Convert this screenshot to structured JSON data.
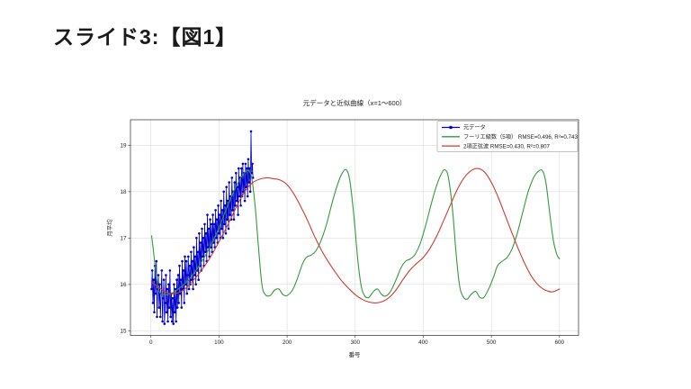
{
  "slide": {
    "title": "スライド3:【図1】"
  },
  "chart_data": {
    "type": "line",
    "title": "元データと近似曲線（x=1～600）",
    "xlabel": "番号",
    "ylabel": "月平均",
    "xlim": [
      -30,
      628
    ],
    "ylim": [
      14.9,
      19.55
    ],
    "xticks": [
      0,
      100,
      200,
      300,
      400,
      500,
      600
    ],
    "yticks": [
      15,
      16,
      17,
      18,
      19
    ],
    "grid": true,
    "legend_position": "upper right",
    "series": [
      {
        "name": "original-data",
        "label": "元データ",
        "color": "#0000cc",
        "style": "line+markers",
        "x_start": 1,
        "values": [
          15.9,
          16.3,
          15.6,
          16.1,
          15.4,
          16.4,
          15.8,
          16.5,
          15.3,
          15.9,
          16.2,
          15.5,
          16.0,
          15.3,
          15.8,
          16.3,
          15.2,
          15.7,
          16.1,
          15.15,
          15.6,
          16.2,
          15.4,
          15.9,
          15.2,
          16.0,
          15.5,
          16.3,
          15.3,
          15.8,
          15.2,
          15.7,
          15.15,
          16.0,
          15.4,
          15.9,
          15.2,
          16.1,
          15.5,
          16.2,
          15.6,
          16.4,
          15.8,
          16.1,
          15.5,
          16.5,
          15.9,
          16.3,
          15.6,
          16.6,
          16.0,
          16.5,
          15.8,
          16.2,
          16.6,
          15.9,
          16.4,
          16.0,
          16.7,
          16.1,
          16.5,
          15.9,
          16.8,
          16.2,
          16.6,
          16.0,
          17.0,
          16.3,
          16.7,
          16.1,
          17.1,
          16.4,
          16.9,
          16.3,
          17.2,
          16.6,
          17.0,
          16.4,
          17.3,
          16.7,
          17.1,
          16.5,
          17.5,
          16.8,
          17.2,
          16.6,
          17.4,
          16.8,
          17.3,
          16.7,
          17.5,
          16.9,
          17.3,
          16.8,
          17.6,
          17.0,
          17.4,
          16.9,
          17.7,
          17.1,
          17.5,
          17.0,
          17.8,
          17.2,
          17.6,
          17.0,
          18.0,
          17.3,
          17.7,
          17.1,
          18.1,
          17.4,
          17.8,
          17.2,
          18.2,
          17.5,
          17.9,
          17.4,
          18.3,
          17.6,
          18.0,
          17.4,
          18.2,
          17.7,
          18.4,
          17.8,
          18.1,
          17.5,
          18.5,
          17.9,
          18.3,
          17.7,
          18.5,
          17.9,
          18.6,
          18.0,
          18.4,
          17.8,
          18.6,
          18.1,
          18.5,
          17.9,
          18.7,
          18.2,
          18.5,
          18.0,
          19.3,
          18.4,
          18.6,
          18.3
        ]
      },
      {
        "name": "fourier-series",
        "label": "フーリエ級数（5項） RMSE=0.496, R²=0.743",
        "color": "#339a3d",
        "style": "line",
        "points": [
          [
            1,
            17.05
          ],
          [
            4,
            16.7
          ],
          [
            8,
            16.15
          ],
          [
            12,
            15.85
          ],
          [
            18,
            15.78
          ],
          [
            25,
            15.78
          ],
          [
            32,
            15.82
          ],
          [
            40,
            15.9
          ],
          [
            50,
            16.02
          ],
          [
            60,
            16.18
          ],
          [
            70,
            16.38
          ],
          [
            80,
            16.62
          ],
          [
            90,
            16.9
          ],
          [
            100,
            17.22
          ],
          [
            110,
            17.6
          ],
          [
            120,
            17.95
          ],
          [
            130,
            18.25
          ],
          [
            138,
            18.42
          ],
          [
            143,
            18.46
          ],
          [
            148,
            18.3
          ],
          [
            153,
            17.7
          ],
          [
            158,
            16.8
          ],
          [
            163,
            16.0
          ],
          [
            168,
            15.78
          ],
          [
            175,
            15.76
          ],
          [
            182,
            15.88
          ],
          [
            188,
            15.9
          ],
          [
            194,
            15.78
          ],
          [
            200,
            15.76
          ],
          [
            208,
            15.88
          ],
          [
            215,
            16.12
          ],
          [
            222,
            16.42
          ],
          [
            228,
            16.58
          ],
          [
            235,
            16.63
          ],
          [
            242,
            16.72
          ],
          [
            250,
            16.95
          ],
          [
            258,
            17.3
          ],
          [
            266,
            17.75
          ],
          [
            274,
            18.15
          ],
          [
            281,
            18.4
          ],
          [
            287,
            18.47
          ],
          [
            292,
            18.25
          ],
          [
            298,
            17.5
          ],
          [
            304,
            16.5
          ],
          [
            309,
            15.95
          ],
          [
            314,
            15.75
          ],
          [
            320,
            15.72
          ],
          [
            327,
            15.85
          ],
          [
            333,
            15.9
          ],
          [
            339,
            15.78
          ],
          [
            345,
            15.75
          ],
          [
            352,
            15.85
          ],
          [
            360,
            16.1
          ],
          [
            367,
            16.35
          ],
          [
            374,
            16.5
          ],
          [
            381,
            16.55
          ],
          [
            388,
            16.65
          ],
          [
            396,
            16.9
          ],
          [
            404,
            17.3
          ],
          [
            412,
            17.75
          ],
          [
            420,
            18.15
          ],
          [
            427,
            18.4
          ],
          [
            432,
            18.47
          ],
          [
            437,
            18.3
          ],
          [
            443,
            17.6
          ],
          [
            448,
            16.7
          ],
          [
            453,
            16.0
          ],
          [
            458,
            15.75
          ],
          [
            464,
            15.68
          ],
          [
            470,
            15.78
          ],
          [
            477,
            15.85
          ],
          [
            483,
            15.72
          ],
          [
            489,
            15.72
          ],
          [
            496,
            15.9
          ],
          [
            503,
            16.15
          ],
          [
            509,
            16.4
          ],
          [
            516,
            16.5
          ],
          [
            523,
            16.58
          ],
          [
            530,
            16.75
          ],
          [
            538,
            17.1
          ],
          [
            546,
            17.55
          ],
          [
            554,
            18.0
          ],
          [
            562,
            18.3
          ],
          [
            569,
            18.44
          ],
          [
            575,
            18.45
          ],
          [
            580,
            18.2
          ],
          [
            586,
            17.5
          ],
          [
            591,
            16.95
          ],
          [
            596,
            16.65
          ],
          [
            600,
            16.55
          ]
        ]
      },
      {
        "name": "two-term-sine",
        "label": "2項正弦波 RMSE=0.430, R²=0.807",
        "color": "#cf3b30",
        "style": "line",
        "points": [
          [
            1,
            16.05
          ],
          [
            10,
            15.95
          ],
          [
            20,
            15.85
          ],
          [
            30,
            15.8
          ],
          [
            40,
            15.82
          ],
          [
            50,
            15.9
          ],
          [
            60,
            16.05
          ],
          [
            70,
            16.22
          ],
          [
            80,
            16.42
          ],
          [
            90,
            16.65
          ],
          [
            100,
            16.92
          ],
          [
            110,
            17.2
          ],
          [
            120,
            17.5
          ],
          [
            130,
            17.8
          ],
          [
            140,
            18.05
          ],
          [
            150,
            18.2
          ],
          [
            160,
            18.27
          ],
          [
            170,
            18.3
          ],
          [
            180,
            18.28
          ],
          [
            190,
            18.25
          ],
          [
            200,
            18.15
          ],
          [
            210,
            17.95
          ],
          [
            220,
            17.68
          ],
          [
            230,
            17.38
          ],
          [
            240,
            17.05
          ],
          [
            250,
            16.75
          ],
          [
            260,
            16.5
          ],
          [
            270,
            16.28
          ],
          [
            280,
            16.08
          ],
          [
            290,
            15.92
          ],
          [
            300,
            15.78
          ],
          [
            310,
            15.68
          ],
          [
            320,
            15.62
          ],
          [
            330,
            15.6
          ],
          [
            340,
            15.63
          ],
          [
            350,
            15.72
          ],
          [
            360,
            15.88
          ],
          [
            370,
            16.1
          ],
          [
            380,
            16.3
          ],
          [
            390,
            16.45
          ],
          [
            400,
            16.58
          ],
          [
            410,
            16.78
          ],
          [
            420,
            17.05
          ],
          [
            430,
            17.38
          ],
          [
            440,
            17.72
          ],
          [
            450,
            18.05
          ],
          [
            460,
            18.3
          ],
          [
            470,
            18.45
          ],
          [
            480,
            18.5
          ],
          [
            490,
            18.42
          ],
          [
            500,
            18.2
          ],
          [
            510,
            17.88
          ],
          [
            520,
            17.5
          ],
          [
            530,
            17.12
          ],
          [
            540,
            16.75
          ],
          [
            550,
            16.42
          ],
          [
            560,
            16.15
          ],
          [
            570,
            15.97
          ],
          [
            580,
            15.87
          ],
          [
            590,
            15.84
          ],
          [
            600,
            15.9
          ]
        ]
      }
    ]
  }
}
